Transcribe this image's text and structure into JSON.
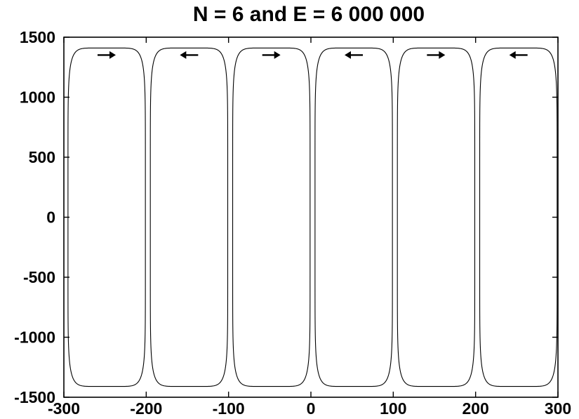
{
  "chart_data": {
    "type": "line",
    "title": "N = 6 and E = 6 000 000",
    "xlabel": "",
    "ylabel": "",
    "xlim": [
      -300,
      300
    ],
    "ylim": [
      -1500,
      1500
    ],
    "x_ticks": [
      -300,
      -200,
      -100,
      0,
      100,
      200,
      300
    ],
    "y_ticks": [
      -1500,
      -1000,
      -500,
      0,
      500,
      1000,
      1500
    ],
    "x_tick_labels": [
      "-300",
      "-200",
      "-100",
      "0",
      "100",
      "200",
      "300"
    ],
    "y_tick_labels": [
      "-1500",
      "-1000",
      "-500",
      "0",
      "500",
      "1000",
      "1500"
    ],
    "grid": false,
    "legend": "none",
    "curve_color": "#000000",
    "orbits": [
      {
        "x_min": -295,
        "x_max": -201,
        "y_min": -1410,
        "y_max": 1410,
        "direction": "right"
      },
      {
        "x_min": -195,
        "x_max": -101,
        "y_min": -1410,
        "y_max": 1410,
        "direction": "left"
      },
      {
        "x_min": -95,
        "x_max": -1,
        "y_min": -1410,
        "y_max": 1410,
        "direction": "right"
      },
      {
        "x_min": 5,
        "x_max": 99,
        "y_min": -1410,
        "y_max": 1410,
        "direction": "left"
      },
      {
        "x_min": 105,
        "x_max": 199,
        "y_min": -1410,
        "y_max": 1410,
        "direction": "right"
      },
      {
        "x_min": 205,
        "x_max": 299,
        "y_min": -1410,
        "y_max": 1410,
        "direction": "left"
      }
    ]
  }
}
